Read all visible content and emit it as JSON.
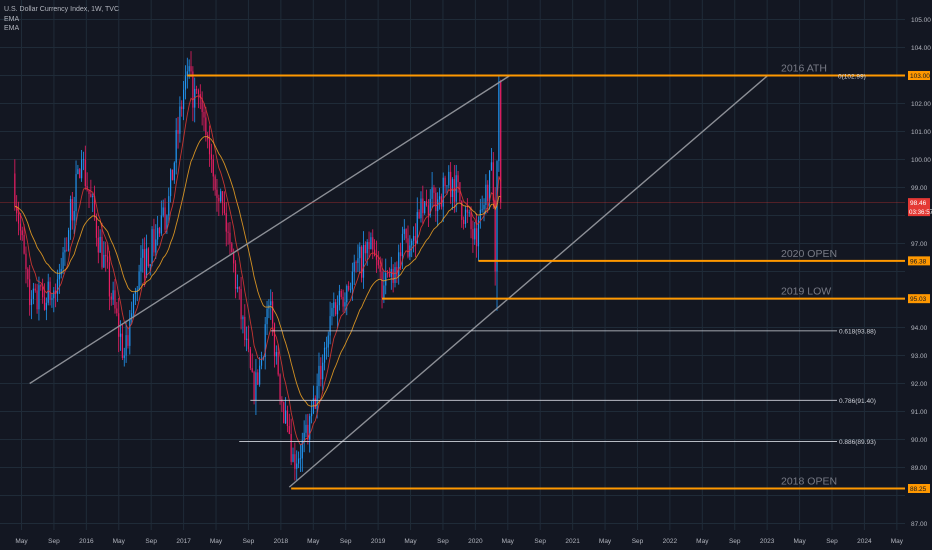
{
  "header": {
    "symbol_line": "U.S. Dollar Currency Index, 1W, TVC",
    "indicator_1": "EMA",
    "indicator_2": "EMA"
  },
  "colors": {
    "background": "#131722",
    "grid": "#1f2b38",
    "axis_text": "#b2b5be",
    "up_candle": "#2196f3",
    "down_candle": "#e91e63",
    "ema_fast": "#e53935",
    "ema_slow": "#f5a623",
    "level_line": "#ff9800",
    "fib_line": "#d1d4dc",
    "trend_line": "#8c8f96",
    "price_tag": "#e53935"
  },
  "chart_data": {
    "type": "candlestick",
    "y_axis": {
      "min": 87,
      "max": 105,
      "ticks": [
        "87.00",
        "88.00",
        "89.00",
        "90.00",
        "91.00",
        "92.00",
        "93.00",
        "94.00",
        "95.00",
        "96.00",
        "97.00",
        "98.00",
        "99.00",
        "100.00",
        "101.00",
        "102.00",
        "103.00",
        "104.00",
        "105.00"
      ]
    },
    "x_axis": {
      "ticks": [
        "May",
        "Sep",
        "2016",
        "May",
        "Sep",
        "2017",
        "May",
        "Sep",
        "2018",
        "May",
        "Sep",
        "2019",
        "May",
        "Sep",
        "2020",
        "May",
        "Sep",
        "2021",
        "May",
        "Sep",
        "2022",
        "May",
        "Sep",
        "2023",
        "May",
        "Sep",
        "2024",
        "May"
      ]
    },
    "horizontal_levels": [
      {
        "label": "2016 ATH",
        "price": 103.0,
        "annotation": "0(102.99)",
        "axis_tag": "103.00"
      },
      {
        "label": "2020 OPEN",
        "price": 96.38,
        "axis_tag": "96.38"
      },
      {
        "label": "2019 LOW",
        "price": 95.03,
        "axis_tag": "95.03"
      },
      {
        "label": "2018 OPEN",
        "price": 88.25,
        "axis_tag": "88.25"
      }
    ],
    "fib_levels": [
      {
        "label": "0.618(93.88)",
        "price": 93.88
      },
      {
        "label": "0.786(91.40)",
        "price": 91.4
      },
      {
        "label": "0.886(89.93)",
        "price": 89.93
      }
    ],
    "current_price": {
      "value": "98.46",
      "countdown": "03:36:57",
      "price": 98.46
    },
    "anchor_points": [
      {
        "date": "2015-03-13",
        "close": 99.5
      },
      {
        "date": "2015-05-15",
        "close": 94.8
      },
      {
        "date": "2015-08-21",
        "close": 95.2
      },
      {
        "date": "2015-11-27",
        "close": 100.0
      },
      {
        "date": "2016-05-06",
        "close": 93.0
      },
      {
        "date": "2016-07-01",
        "close": 96.0
      },
      {
        "date": "2016-10-14",
        "close": 98.0
      },
      {
        "date": "2016-12-23",
        "close": 103.0
      },
      {
        "date": "2017-03-03",
        "close": 101.5
      },
      {
        "date": "2017-06-09",
        "close": 97.0
      },
      {
        "date": "2017-09-08",
        "close": 91.4
      },
      {
        "date": "2017-11-03",
        "close": 94.8
      },
      {
        "date": "2018-01-26",
        "close": 89.2
      },
      {
        "date": "2018-03-30",
        "close": 90.0
      },
      {
        "date": "2018-06-29",
        "close": 94.7
      },
      {
        "date": "2018-11-16",
        "close": 96.8
      },
      {
        "date": "2019-01-11",
        "close": 95.5
      },
      {
        "date": "2019-05-24",
        "close": 97.9
      },
      {
        "date": "2019-09-27",
        "close": 99.3
      },
      {
        "date": "2019-12-27",
        "close": 96.9
      },
      {
        "date": "2020-02-21",
        "close": 99.9
      },
      {
        "date": "2020-03-06",
        "close": 96.0
      },
      {
        "date": "2020-03-20",
        "close": 102.8
      },
      {
        "date": "2020-03-27",
        "close": 98.46
      }
    ]
  }
}
